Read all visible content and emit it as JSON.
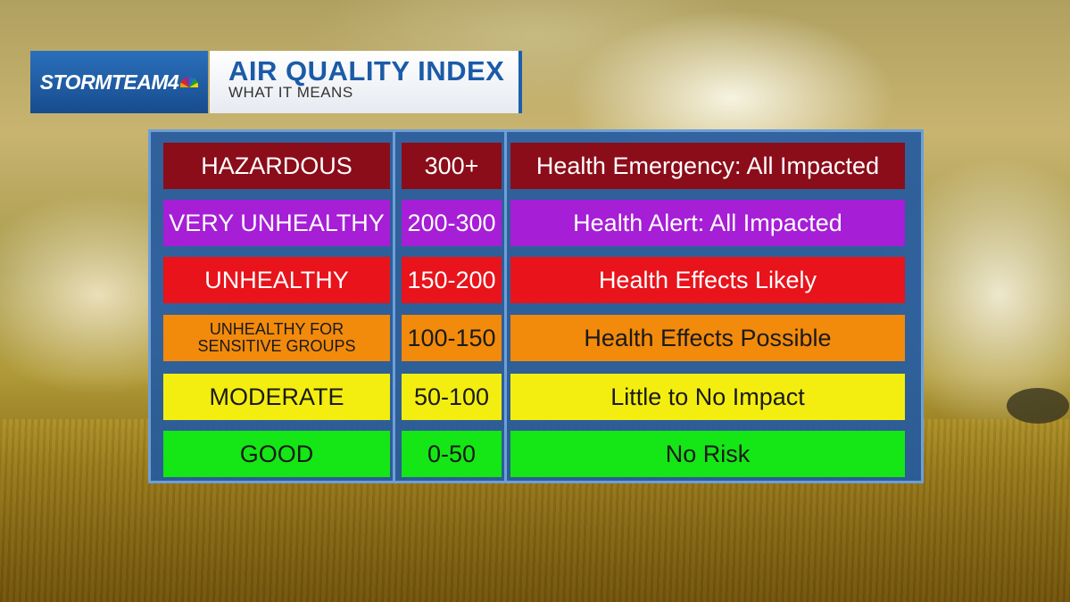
{
  "brand": {
    "logo_text": "STORMTEAM4",
    "logo_icon": "peacock-icon"
  },
  "header": {
    "title": "AIR QUALITY INDEX",
    "subtitle": "WHAT IT MEANS"
  },
  "table": {
    "rows": [
      {
        "category": "HAZARDOUS",
        "range": "300+",
        "meaning": "Health Emergency:  All Impacted",
        "bg": "#8b0d1a",
        "fg": "#ffffff"
      },
      {
        "category": "VERY UNHEALTHY",
        "range": "200-300",
        "meaning": "Health Alert:  All Impacted",
        "bg": "#a61ed6",
        "fg": "#ffffff"
      },
      {
        "category": "UNHEALTHY",
        "range": "150-200",
        "meaning": "Health Effects Likely",
        "bg": "#e8131b",
        "fg": "#ffffff"
      },
      {
        "category_line1": "UNHEALTHY FOR",
        "category_line2": "SENSITIVE GROUPS",
        "range": "100-150",
        "meaning": "Health Effects Possible",
        "bg": "#f28a0c",
        "fg": "#1a1a1a"
      },
      {
        "category": "MODERATE",
        "range": "50-100",
        "meaning": "Little to No Impact",
        "bg": "#f4ee10",
        "fg": "#1a1a1a"
      },
      {
        "category": "GOOD",
        "range": "0-50",
        "meaning": "No Risk",
        "bg": "#15e615",
        "fg": "#1a1a1a"
      }
    ]
  }
}
